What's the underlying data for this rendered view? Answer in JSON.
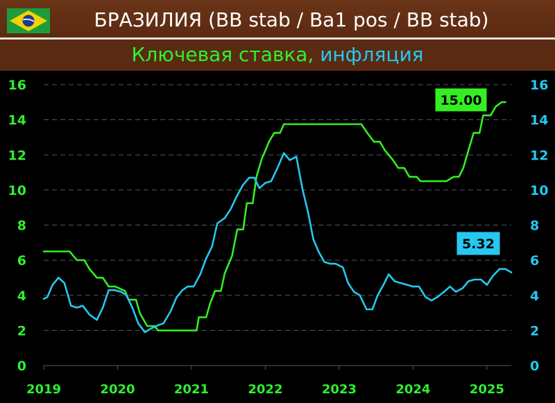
{
  "header": {
    "title": "БРАЗИЛИЯ (BB stab / Ba1 pos / BB stab)",
    "flag_icon": "brazil-flag-icon"
  },
  "subheader": {
    "series_a": "Ключевая ставка,",
    "series_b": "инфляция"
  },
  "colors": {
    "header_bg": "#5b2a12",
    "rate": "#33ee22",
    "inflation": "#26c8f0",
    "grid": "#555555",
    "background": "#000000"
  },
  "chart_data": {
    "type": "line",
    "x_ticks": [
      "2019",
      "2020",
      "2021",
      "2022",
      "2023",
      "2024",
      "2025"
    ],
    "y_left_ticks": [
      "0",
      "2",
      "4",
      "6",
      "8",
      "10",
      "12",
      "14",
      "16"
    ],
    "y_right_ticks": [
      "0",
      "2",
      "4",
      "6",
      "8",
      "10",
      "12",
      "14",
      "16"
    ],
    "ylim": [
      0,
      16
    ],
    "xlim": [
      2019.0,
      2025.33
    ],
    "grid": "horizontal dashed",
    "series": [
      {
        "key": "rate",
        "color": "#33ee22",
        "callout": "15.00",
        "points": [
          [
            2019.0,
            6.5
          ],
          [
            2019.35,
            6.5
          ],
          [
            2019.45,
            6.0
          ],
          [
            2019.55,
            6.0
          ],
          [
            2019.62,
            5.5
          ],
          [
            2019.72,
            5.0
          ],
          [
            2019.8,
            5.0
          ],
          [
            2019.88,
            4.5
          ],
          [
            2019.97,
            4.5
          ],
          [
            2020.1,
            4.25
          ],
          [
            2020.15,
            3.75
          ],
          [
            2020.25,
            3.75
          ],
          [
            2020.3,
            3.0
          ],
          [
            2020.4,
            2.25
          ],
          [
            2020.5,
            2.25
          ],
          [
            2020.55,
            2.0
          ],
          [
            2021.0,
            2.0
          ],
          [
            2021.07,
            2.0
          ],
          [
            2021.1,
            2.75
          ],
          [
            2021.2,
            2.75
          ],
          [
            2021.25,
            3.5
          ],
          [
            2021.32,
            4.25
          ],
          [
            2021.4,
            4.25
          ],
          [
            2021.45,
            5.25
          ],
          [
            2021.55,
            6.25
          ],
          [
            2021.62,
            7.75
          ],
          [
            2021.7,
            7.75
          ],
          [
            2021.75,
            9.25
          ],
          [
            2021.83,
            9.25
          ],
          [
            2021.88,
            10.75
          ],
          [
            2021.95,
            11.75
          ],
          [
            2022.05,
            12.75
          ],
          [
            2022.12,
            13.25
          ],
          [
            2022.2,
            13.25
          ],
          [
            2022.25,
            13.75
          ],
          [
            2022.5,
            13.75
          ],
          [
            2023.3,
            13.75
          ],
          [
            2023.38,
            13.25
          ],
          [
            2023.47,
            12.75
          ],
          [
            2023.55,
            12.75
          ],
          [
            2023.62,
            12.25
          ],
          [
            2023.72,
            11.75
          ],
          [
            2023.8,
            11.25
          ],
          [
            2023.88,
            11.25
          ],
          [
            2023.95,
            10.75
          ],
          [
            2024.05,
            10.75
          ],
          [
            2024.1,
            10.5
          ],
          [
            2024.45,
            10.5
          ],
          [
            2024.55,
            10.75
          ],
          [
            2024.62,
            10.75
          ],
          [
            2024.68,
            11.25
          ],
          [
            2024.75,
            12.25
          ],
          [
            2024.82,
            13.25
          ],
          [
            2024.9,
            13.25
          ],
          [
            2024.95,
            14.25
          ],
          [
            2025.05,
            14.25
          ],
          [
            2025.12,
            14.75
          ],
          [
            2025.2,
            15.0
          ],
          [
            2025.25,
            15.0
          ]
        ]
      },
      {
        "key": "inflation",
        "color": "#26c8f0",
        "callout": "5.32",
        "points": [
          [
            2019.0,
            3.8
          ],
          [
            2019.05,
            3.9
          ],
          [
            2019.12,
            4.6
          ],
          [
            2019.2,
            5.0
          ],
          [
            2019.28,
            4.7
          ],
          [
            2019.37,
            3.4
          ],
          [
            2019.45,
            3.3
          ],
          [
            2019.53,
            3.4
          ],
          [
            2019.62,
            2.9
          ],
          [
            2019.72,
            2.6
          ],
          [
            2019.8,
            3.3
          ],
          [
            2019.88,
            4.3
          ],
          [
            2019.95,
            4.3
          ],
          [
            2020.05,
            4.2
          ],
          [
            2020.12,
            4.0
          ],
          [
            2020.2,
            3.3
          ],
          [
            2020.28,
            2.4
          ],
          [
            2020.37,
            1.9
          ],
          [
            2020.45,
            2.1
          ],
          [
            2020.55,
            2.3
          ],
          [
            2020.62,
            2.4
          ],
          [
            2020.72,
            3.1
          ],
          [
            2020.8,
            3.9
          ],
          [
            2020.88,
            4.3
          ],
          [
            2020.95,
            4.5
          ],
          [
            2021.03,
            4.5
          ],
          [
            2021.12,
            5.2
          ],
          [
            2021.2,
            6.1
          ],
          [
            2021.28,
            6.8
          ],
          [
            2021.35,
            8.1
          ],
          [
            2021.45,
            8.4
          ],
          [
            2021.53,
            8.9
          ],
          [
            2021.62,
            9.7
          ],
          [
            2021.7,
            10.3
          ],
          [
            2021.78,
            10.7
          ],
          [
            2021.85,
            10.7
          ],
          [
            2021.92,
            10.1
          ],
          [
            2022.0,
            10.4
          ],
          [
            2022.08,
            10.5
          ],
          [
            2022.17,
            11.3
          ],
          [
            2022.25,
            12.1
          ],
          [
            2022.33,
            11.7
          ],
          [
            2022.42,
            11.9
          ],
          [
            2022.5,
            10.1
          ],
          [
            2022.58,
            8.7
          ],
          [
            2022.65,
            7.2
          ],
          [
            2022.72,
            6.5
          ],
          [
            2022.8,
            5.9
          ],
          [
            2022.88,
            5.8
          ],
          [
            2022.95,
            5.8
          ],
          [
            2023.05,
            5.6
          ],
          [
            2023.12,
            4.7
          ],
          [
            2023.2,
            4.2
          ],
          [
            2023.28,
            4.0
          ],
          [
            2023.37,
            3.2
          ],
          [
            2023.45,
            3.2
          ],
          [
            2023.52,
            4.0
          ],
          [
            2023.6,
            4.6
          ],
          [
            2023.67,
            5.2
          ],
          [
            2023.75,
            4.8
          ],
          [
            2023.83,
            4.7
          ],
          [
            2023.92,
            4.6
          ],
          [
            2024.0,
            4.5
          ],
          [
            2024.08,
            4.5
          ],
          [
            2024.17,
            3.9
          ],
          [
            2024.25,
            3.7
          ],
          [
            2024.33,
            3.9
          ],
          [
            2024.42,
            4.2
          ],
          [
            2024.5,
            4.5
          ],
          [
            2024.58,
            4.2
          ],
          [
            2024.67,
            4.4
          ],
          [
            2024.75,
            4.8
          ],
          [
            2024.83,
            4.9
          ],
          [
            2024.92,
            4.9
          ],
          [
            2025.0,
            4.6
          ],
          [
            2025.08,
            5.1
          ],
          [
            2025.17,
            5.5
          ],
          [
            2025.25,
            5.5
          ],
          [
            2025.33,
            5.3
          ]
        ]
      }
    ]
  }
}
